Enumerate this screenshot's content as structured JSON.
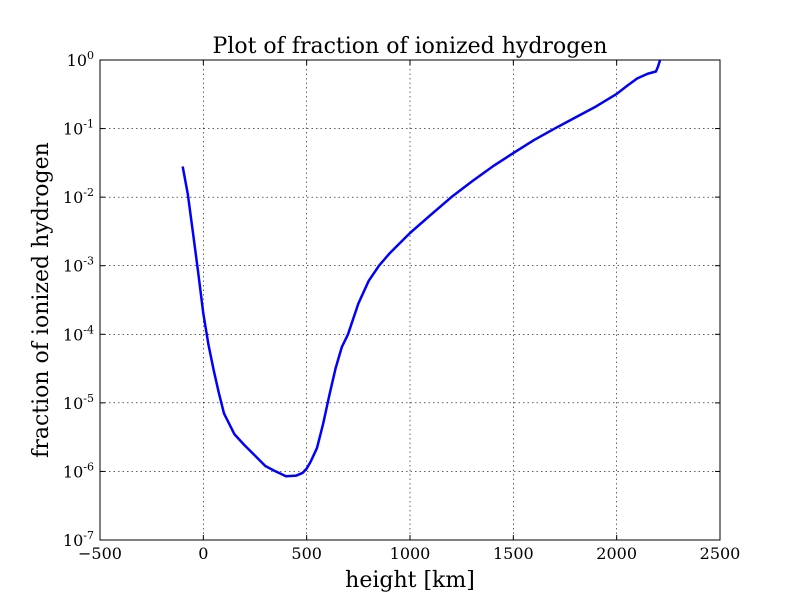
{
  "chart_data": {
    "type": "line",
    "title": "Plot of fraction of ionized hydrogen",
    "xlabel": "height [km]",
    "ylabel": "fraction of ionized hydrogen",
    "xlim": [
      -500,
      2500
    ],
    "ylim": [
      1e-07,
      1
    ],
    "yscale": "log",
    "grid": true,
    "x_ticks": [
      {
        "value": -500,
        "label": "−500"
      },
      {
        "value": 0,
        "label": "0"
      },
      {
        "value": 500,
        "label": "500"
      },
      {
        "value": 1000,
        "label": "1000"
      },
      {
        "value": 1500,
        "label": "1500"
      },
      {
        "value": 2000,
        "label": "2000"
      },
      {
        "value": 2500,
        "label": "2500"
      }
    ],
    "y_ticks": [
      {
        "value": 1,
        "base": "10",
        "exp": "0"
      },
      {
        "value": 0.1,
        "base": "10",
        "exp": "-1"
      },
      {
        "value": 0.01,
        "base": "10",
        "exp": "-2"
      },
      {
        "value": 0.001,
        "base": "10",
        "exp": "-3"
      },
      {
        "value": 0.0001,
        "base": "10",
        "exp": "-4"
      },
      {
        "value": 1e-05,
        "base": "10",
        "exp": "-5"
      },
      {
        "value": 1e-06,
        "base": "10",
        "exp": "-6"
      },
      {
        "value": 1e-07,
        "base": "10",
        "exp": "-7"
      }
    ],
    "series": [
      {
        "color": "#0000ff",
        "x": [
          -100,
          -75,
          -50,
          -25,
          0,
          25,
          50,
          75,
          100,
          150,
          200,
          250,
          300,
          350,
          400,
          450,
          480,
          500,
          520,
          550,
          580,
          610,
          640,
          670,
          700,
          750,
          800,
          850,
          900,
          1000,
          1100,
          1200,
          1300,
          1400,
          1500,
          1600,
          1700,
          1800,
          1900,
          2000,
          2050,
          2100,
          2150,
          2190,
          2200,
          2210
        ],
        "y": [
          0.028,
          0.011,
          0.003,
          0.0008,
          0.0002,
          7e-05,
          3e-05,
          1.4e-05,
          7e-06,
          3.5e-06,
          2.4e-06,
          1.7e-06,
          1.2e-06,
          1e-06,
          8.5e-07,
          8.7e-07,
          9.5e-07,
          1.1e-06,
          1.4e-06,
          2.2e-06,
          5e-06,
          1.3e-05,
          3.2e-05,
          6.5e-05,
          0.0001,
          0.00028,
          0.0006,
          0.001,
          0.0015,
          0.003,
          0.0055,
          0.01,
          0.017,
          0.028,
          0.044,
          0.068,
          0.1,
          0.145,
          0.21,
          0.32,
          0.42,
          0.54,
          0.63,
          0.68,
          0.8,
          1.0
        ]
      }
    ]
  }
}
